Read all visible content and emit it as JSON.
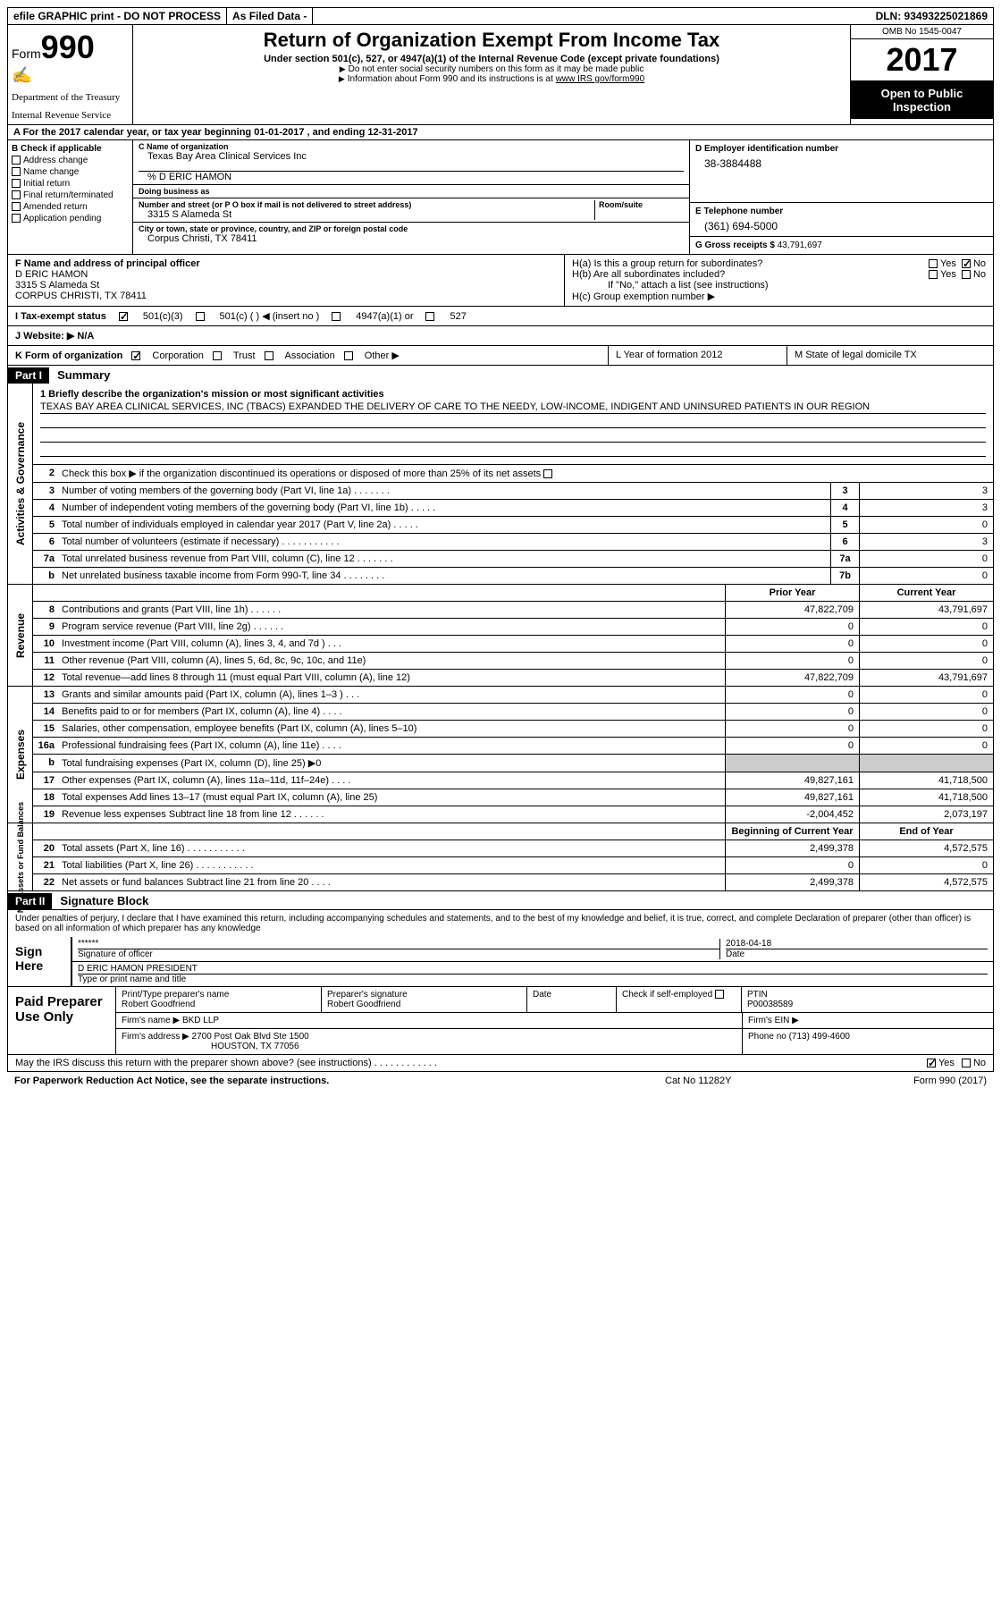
{
  "topbar": {
    "efile": "efile GRAPHIC print - DO NOT PROCESS",
    "asfiled": "As Filed Data -",
    "dln": "DLN: 93493225021869"
  },
  "header": {
    "form_word": "Form",
    "form_num": "990",
    "dept1": "Department of the Treasury",
    "dept2": "Internal Revenue Service",
    "title": "Return of Organization Exempt From Income Tax",
    "subtitle": "Under section 501(c), 527, or 4947(a)(1) of the Internal Revenue Code (except private foundations)",
    "note1": "Do not enter social security numbers on this form as it may be made public",
    "note2": "Information about Form 990 and its instructions is at ",
    "note2_link": "www IRS gov/form990",
    "omb": "OMB No  1545-0047",
    "year": "2017",
    "open": "Open to Public Inspection"
  },
  "rowA": "A   For the 2017 calendar year, or tax year beginning 01-01-2017    , and ending 12-31-2017",
  "colB": {
    "hdr": "B Check if applicable",
    "items": [
      "Address change",
      "Name change",
      "Initial return",
      "Final return/terminated",
      "Amended return",
      "Application pending"
    ]
  },
  "colC": {
    "name_label": "C Name of organization",
    "name": "Texas Bay Area Clinical Services Inc",
    "care_of": "% D ERIC HAMON",
    "dba_label": "Doing business as",
    "addr_label": "Number and street (or P O  box if mail is not delivered to street address)",
    "room_label": "Room/suite",
    "addr": "3315 S Alameda St",
    "city_label": "City or town, state or province, country, and ZIP or foreign postal code",
    "city": "Corpus Christi, TX  78411"
  },
  "colD": {
    "label": "D Employer identification number",
    "val": "38-3884488",
    "tel_label": "E Telephone number",
    "tel": "(361) 694-5000",
    "gross_label": "G Gross receipts $",
    "gross": "43,791,697"
  },
  "rowF": {
    "label": "F  Name and address of principal officer",
    "name": "D ERIC HAMON",
    "addr1": "3315 S Alameda St",
    "addr2": "CORPUS CHRISTI, TX  78411"
  },
  "rowH": {
    "ha": "H(a)  Is this a group return for subordinates?",
    "hb": "H(b)  Are all subordinates included?",
    "hb_note": "If \"No,\" attach a list  (see instructions)",
    "hc": "H(c)  Group exemption number ▶",
    "yes": "Yes",
    "no": "No"
  },
  "rowI": {
    "label": "I   Tax-exempt status",
    "opt1": "501(c)(3)",
    "opt2": "501(c) (   ) ◀ (insert no )",
    "opt3": "4947(a)(1) or",
    "opt4": "527"
  },
  "rowJ": "J   Website: ▶   N/A",
  "rowK": {
    "label": "K Form of organization",
    "opts": [
      "Corporation",
      "Trust",
      "Association",
      "Other ▶"
    ]
  },
  "rowL": "L Year of formation  2012",
  "rowM": "M State of legal domicile  TX",
  "part1": {
    "hdr": "Part I",
    "title": "Summary",
    "line1_label": "1  Briefly describe the organization's mission or most significant activities",
    "mission": "TEXAS BAY AREA CLINICAL SERVICES, INC  (TBACS) EXPANDED THE DELIVERY OF CARE TO THE NEEDY, LOW-INCOME, INDIGENT AND UNINSURED PATIENTS IN OUR REGION",
    "line2": "Check this box ▶        if the organization discontinued its operations or disposed of more than 25% of its net assets",
    "lines_gov": [
      {
        "n": "3",
        "d": "Number of voting members of the governing body (Part VI, line 1a)   .     .     .     .     .     .     .",
        "b": "3",
        "v": "3"
      },
      {
        "n": "4",
        "d": "Number of independent voting members of the governing body (Part VI, line 1b)   .     .     .     .     .",
        "b": "4",
        "v": "3"
      },
      {
        "n": "5",
        "d": "Total number of individuals employed in calendar year 2017 (Part V, line 2a)   .     .     .     .     .",
        "b": "5",
        "v": "0"
      },
      {
        "n": "6",
        "d": "Total number of volunteers (estimate if necessary)     .     .     .     .     .     .     .     .     .     .     .",
        "b": "6",
        "v": "3"
      },
      {
        "n": "7a",
        "d": "Total unrelated business revenue from Part VIII, column (C), line 12   .     .     .     .     .     .     .",
        "b": "7a",
        "v": "0"
      },
      {
        "n": "b",
        "d": "Net unrelated business taxable income from Form 990-T, line 34   .     .     .     .     .     .     .     .",
        "b": "7b",
        "v": "0"
      }
    ],
    "col_prior": "Prior Year",
    "col_curr": "Current Year",
    "lines_rev": [
      {
        "n": "8",
        "d": "Contributions and grants (Part VIII, line 1h)   .     .     .     .     .     .",
        "p": "47,822,709",
        "c": "43,791,697"
      },
      {
        "n": "9",
        "d": "Program service revenue (Part VIII, line 2g)    .     .     .     .     .     .",
        "p": "0",
        "c": "0"
      },
      {
        "n": "10",
        "d": "Investment income (Part VIII, column (A), lines 3, 4, and 7d )   .     .     .",
        "p": "0",
        "c": "0"
      },
      {
        "n": "11",
        "d": "Other revenue (Part VIII, column (A), lines 5, 6d, 8c, 9c, 10c, and 11e)",
        "p": "0",
        "c": "0"
      },
      {
        "n": "12",
        "d": "Total revenue—add lines 8 through 11 (must equal Part VIII, column (A), line 12)",
        "p": "47,822,709",
        "c": "43,791,697"
      }
    ],
    "lines_exp": [
      {
        "n": "13",
        "d": "Grants and similar amounts paid (Part IX, column (A), lines 1–3 )   .     .     .",
        "p": "0",
        "c": "0"
      },
      {
        "n": "14",
        "d": "Benefits paid to or for members (Part IX, column (A), line 4)   .     .     .     .",
        "p": "0",
        "c": "0"
      },
      {
        "n": "15",
        "d": "Salaries, other compensation, employee benefits (Part IX, column (A), lines 5–10)",
        "p": "0",
        "c": "0"
      },
      {
        "n": "16a",
        "d": "Professional fundraising fees (Part IX, column (A), line 11e)   .     .     .     .",
        "p": "0",
        "c": "0"
      },
      {
        "n": "b",
        "d": "Total fundraising expenses (Part IX, column (D), line 25) ▶0",
        "p": "",
        "c": ""
      },
      {
        "n": "17",
        "d": "Other expenses (Part IX, column (A), lines 11a–11d, 11f–24e)   .     .     .     .",
        "p": "49,827,161",
        "c": "41,718,500"
      },
      {
        "n": "18",
        "d": "Total expenses  Add lines 13–17 (must equal Part IX, column (A), line 25)",
        "p": "49,827,161",
        "c": "41,718,500"
      },
      {
        "n": "19",
        "d": "Revenue less expenses  Subtract line 18 from line 12   .     .     .     .     .     .",
        "p": "-2,004,452",
        "c": "2,073,197"
      }
    ],
    "col_begin": "Beginning of Current Year",
    "col_end": "End of Year",
    "lines_net": [
      {
        "n": "20",
        "d": "Total assets (Part X, line 16)   .     .     .     .     .     .     .     .     .     .     .",
        "p": "2,499,378",
        "c": "4,572,575"
      },
      {
        "n": "21",
        "d": "Total liabilities (Part X, line 26)   .     .     .     .     .     .     .     .     .     .     .",
        "p": "0",
        "c": "0"
      },
      {
        "n": "22",
        "d": "Net assets or fund balances  Subtract line 21 from line 20   .     .     .     .",
        "p": "2,499,378",
        "c": "4,572,575"
      }
    ],
    "vtab_gov": "Activities & Governance",
    "vtab_rev": "Revenue",
    "vtab_exp": "Expenses",
    "vtab_net": "Net Assets or Fund Balances"
  },
  "part2": {
    "hdr": "Part II",
    "title": "Signature Block",
    "decl": "Under penalties of perjury, I declare that I have examined this return, including accompanying schedules and statements, and to the best of my knowledge and belief, it is true, correct, and complete  Declaration of preparer (other than officer) is based on all information of which preparer has any knowledge",
    "sign_here": "Sign Here",
    "sig_stars": "******",
    "sig_officer": "Signature of officer",
    "sig_date": "2018-04-18",
    "date_label": "Date",
    "officer_name": "D ERIC HAMON  PRESIDENT",
    "name_label": "Type or print name and title",
    "paid": "Paid Preparer Use Only",
    "prep_name_label": "Print/Type preparer's name",
    "prep_name": "Robert Goodfriend",
    "prep_sig_label": "Preparer's signature",
    "prep_sig": "Robert Goodfriend",
    "prep_date_label": "Date",
    "self_emp": "Check         if self-employed",
    "ptin_label": "PTIN",
    "ptin": "P00038589",
    "firm_name_label": "Firm's name    ▶",
    "firm_name": "BKD LLP",
    "firm_ein_label": "Firm's EIN ▶",
    "firm_addr_label": "Firm's address ▶",
    "firm_addr1": "2700 Post Oak Blvd Ste 1500",
    "firm_addr2": "HOUSTON, TX  77056",
    "phone_label": "Phone no  (713) 499-4600",
    "discuss": "May the IRS discuss this return with the preparer shown above? (see instructions)   .     .     .     .     .     .     .     .     .     .     .     .",
    "yes": "Yes",
    "no": "No"
  },
  "footer": {
    "left": "For Paperwork Reduction Act Notice, see the separate instructions.",
    "mid": "Cat  No  11282Y",
    "right": "Form 990 (2017)"
  }
}
